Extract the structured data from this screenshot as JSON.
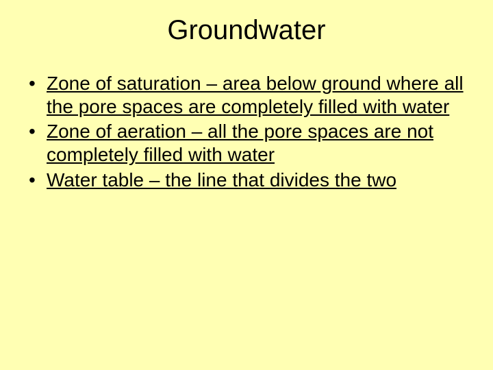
{
  "slide": {
    "background_color": "#ffffb3",
    "text_color": "#000000",
    "title": {
      "text": "Groundwater",
      "fontsize": 40,
      "align": "center"
    },
    "body": {
      "fontsize": 28,
      "underline": true,
      "bullets": [
        "Zone of saturation – area below ground where all the pore spaces are completely filled with water",
        "Zone of aeration – all the pore spaces are not completely filled with water",
        "Water table – the line that divides the two"
      ]
    }
  }
}
